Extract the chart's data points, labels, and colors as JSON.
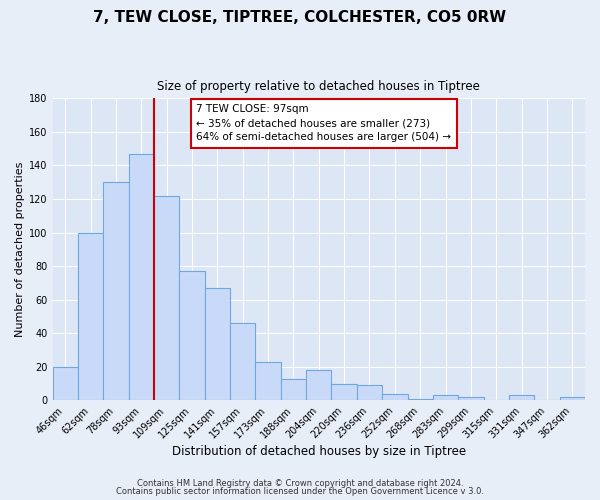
{
  "title": "7, TEW CLOSE, TIPTREE, COLCHESTER, CO5 0RW",
  "subtitle": "Size of property relative to detached houses in Tiptree",
  "xlabel": "Distribution of detached houses by size in Tiptree",
  "ylabel": "Number of detached properties",
  "bar_labels": [
    "46sqm",
    "62sqm",
    "78sqm",
    "93sqm",
    "109sqm",
    "125sqm",
    "141sqm",
    "157sqm",
    "173sqm",
    "188sqm",
    "204sqm",
    "220sqm",
    "236sqm",
    "252sqm",
    "268sqm",
    "283sqm",
    "299sqm",
    "315sqm",
    "331sqm",
    "347sqm",
    "362sqm"
  ],
  "bar_values": [
    20,
    100,
    130,
    147,
    122,
    77,
    67,
    46,
    23,
    13,
    18,
    10,
    9,
    4,
    1,
    3,
    2,
    0,
    3,
    0,
    2
  ],
  "bar_color": "#c9daf8",
  "bar_edge_color": "#6fa8dc",
  "vline_x": 3.5,
  "vline_color": "#cc0000",
  "annotation_title": "7 TEW CLOSE: 97sqm",
  "annotation_line1": "← 35% of detached houses are smaller (273)",
  "annotation_line2": "64% of semi-detached houses are larger (504) →",
  "annotation_box_color": "white",
  "annotation_box_edge_color": "#cc0000",
  "ylim": [
    0,
    180
  ],
  "yticks": [
    0,
    20,
    40,
    60,
    80,
    100,
    120,
    140,
    160,
    180
  ],
  "footer_line1": "Contains HM Land Registry data © Crown copyright and database right 2024.",
  "footer_line2": "Contains public sector information licensed under the Open Government Licence v 3.0.",
  "background_color": "#e8eef8",
  "plot_bg_color": "#dce6f5",
  "grid_color": "#ffffff",
  "title_fontsize": 11,
  "subtitle_fontsize": 8.5,
  "xlabel_fontsize": 8.5,
  "ylabel_fontsize": 8,
  "tick_fontsize": 7,
  "annotation_fontsize": 7.5,
  "footer_fontsize": 6
}
